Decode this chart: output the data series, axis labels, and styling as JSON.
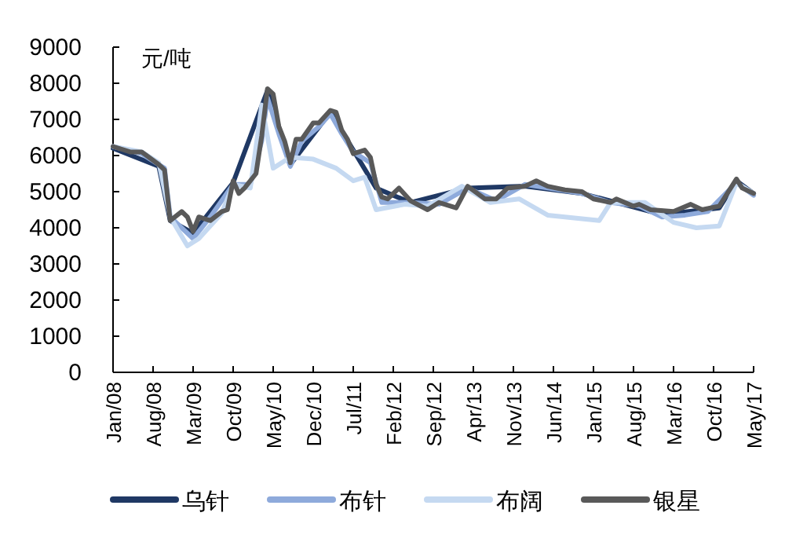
{
  "chart_data": {
    "type": "line",
    "ylabel": "元/吨",
    "xlim": [
      "2008-01",
      "2017-05"
    ],
    "ylim": [
      0,
      9000
    ],
    "yticks": [
      0,
      1000,
      2000,
      3000,
      4000,
      5000,
      6000,
      7000,
      8000,
      9000
    ],
    "xticks": [
      {
        "value": "2008-01",
        "label": "Jan/08"
      },
      {
        "value": "2008-08",
        "label": "Aug/08"
      },
      {
        "value": "2009-03",
        "label": "Mar/09"
      },
      {
        "value": "2009-10",
        "label": "Oct/09"
      },
      {
        "value": "2010-05",
        "label": "May/10"
      },
      {
        "value": "2010-12",
        "label": "Dec/10"
      },
      {
        "value": "2011-07",
        "label": "Jul/11"
      },
      {
        "value": "2012-02",
        "label": "Feb/12"
      },
      {
        "value": "2012-09",
        "label": "Sep/12"
      },
      {
        "value": "2013-04",
        "label": "Apr/13"
      },
      {
        "value": "2013-11",
        "label": "Nov/13"
      },
      {
        "value": "2014-06",
        "label": "Jun/14"
      },
      {
        "value": "2015-01",
        "label": "Jan/15"
      },
      {
        "value": "2015-08",
        "label": "Aug/15"
      },
      {
        "value": "2016-03",
        "label": "Mar/16"
      },
      {
        "value": "2016-10",
        "label": "Oct/16"
      },
      {
        "value": "2017-05",
        "label": "May/17"
      }
    ],
    "legend": "bottom",
    "series": [
      {
        "name": "乌针",
        "color": "#1f3864",
        "x": [
          "2008-01",
          "2008-09",
          "2008-11",
          "2009-03",
          "2009-10",
          "2010-04",
          "2010-08",
          "2011-03",
          "2011-11",
          "2012-05",
          "2013-03",
          "2014-01",
          "2014-11",
          "2015-11",
          "2016-03",
          "2016-11",
          "2017-02",
          "2017-05"
        ],
        "values": [
          6200,
          5700,
          4200,
          3850,
          5250,
          7800,
          5750,
          7200,
          5100,
          4700,
          5100,
          5150,
          4950,
          4450,
          4400,
          4550,
          5300,
          4950
        ]
      },
      {
        "name": "布针",
        "color": "#8eaadb",
        "x": [
          "2008-01",
          "2008-06",
          "2008-10",
          "2008-11",
          "2009-03",
          "2009-06",
          "2009-10",
          "2010-01",
          "2010-03",
          "2010-04",
          "2010-06",
          "2010-08",
          "2010-10",
          "2011-01",
          "2011-03",
          "2011-05",
          "2011-07",
          "2011-10",
          "2011-12",
          "2012-05",
          "2012-10",
          "2013-03",
          "2013-08",
          "2014-01",
          "2014-05",
          "2014-11",
          "2015-04",
          "2015-09",
          "2016-01",
          "2016-05",
          "2016-09",
          "2017-02",
          "2017-05"
        ],
        "values": [
          6250,
          6050,
          5650,
          4300,
          3700,
          4300,
          5200,
          5200,
          6400,
          7600,
          6600,
          5700,
          6400,
          6800,
          7150,
          6600,
          6100,
          5800,
          4700,
          4700,
          4650,
          5100,
          4750,
          5200,
          5100,
          4950,
          4700,
          4600,
          4300,
          4350,
          4450,
          5250,
          4900
        ]
      },
      {
        "name": "布阔",
        "color": "#c5d9f1",
        "x": [
          "2008-01",
          "2008-06",
          "2008-09",
          "2008-11",
          "2009-02",
          "2009-04",
          "2009-08",
          "2009-10",
          "2010-01",
          "2010-03",
          "2010-05",
          "2010-08",
          "2010-12",
          "2011-04",
          "2011-07",
          "2011-09",
          "2011-11",
          "2012-04",
          "2012-08",
          "2013-02",
          "2013-07",
          "2013-12",
          "2014-05",
          "2015-02",
          "2015-04",
          "2015-10",
          "2016-03",
          "2016-07",
          "2016-11",
          "2017-02",
          "2017-05"
        ],
        "values": [
          6250,
          6100,
          5800,
          4300,
          3500,
          3700,
          4400,
          5200,
          5100,
          7400,
          5650,
          5950,
          5900,
          5650,
          5300,
          5400,
          4500,
          4650,
          4600,
          5150,
          4700,
          4800,
          4350,
          4200,
          4700,
          4700,
          4150,
          4000,
          4050,
          5250,
          4950
        ]
      },
      {
        "name": "银星",
        "color": "#595959",
        "x": [
          "2008-01",
          "2008-04",
          "2008-06",
          "2008-09",
          "2008-10",
          "2008-11",
          "2009-01",
          "2009-02",
          "2009-03",
          "2009-04",
          "2009-06",
          "2009-08",
          "2009-09",
          "2009-10",
          "2009-11",
          "2009-12",
          "2010-02",
          "2010-03",
          "2010-04",
          "2010-05",
          "2010-06",
          "2010-07",
          "2010-08",
          "2010-09",
          "2010-10",
          "2010-12",
          "2011-01",
          "2011-03",
          "2011-04",
          "2011-05",
          "2011-06",
          "2011-07",
          "2011-09",
          "2011-10",
          "2011-11",
          "2011-12",
          "2012-01",
          "2012-03",
          "2012-05",
          "2012-08",
          "2012-10",
          "2013-01",
          "2013-03",
          "2013-06",
          "2013-08",
          "2013-10",
          "2014-01",
          "2014-03",
          "2014-05",
          "2014-08",
          "2014-11",
          "2015-01",
          "2015-04",
          "2015-05",
          "2015-08",
          "2015-09",
          "2015-11",
          "2016-03",
          "2016-06",
          "2016-08",
          "2016-11",
          "2017-02",
          "2017-03",
          "2017-05"
        ],
        "values": [
          6250,
          6100,
          6100,
          5750,
          5600,
          4200,
          4450,
          4300,
          3900,
          4300,
          4200,
          4450,
          4500,
          5300,
          4950,
          5100,
          5500,
          6550,
          7850,
          7700,
          6800,
          6400,
          5800,
          6450,
          6450,
          6900,
          6900,
          7250,
          7200,
          6700,
          6450,
          6050,
          6150,
          5950,
          5200,
          4850,
          4800,
          5100,
          4750,
          4500,
          4700,
          4550,
          5150,
          4800,
          4800,
          5100,
          5150,
          5300,
          5150,
          5050,
          5000,
          4800,
          4700,
          4800,
          4600,
          4650,
          4500,
          4450,
          4650,
          4500,
          4600,
          5350,
          5100,
          4950
        ]
      }
    ]
  }
}
